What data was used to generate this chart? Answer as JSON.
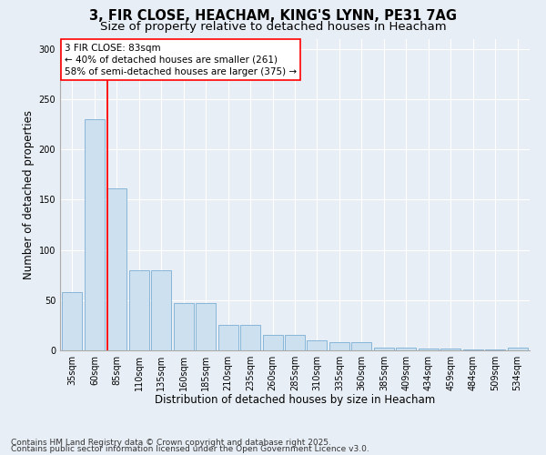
{
  "title1": "3, FIR CLOSE, HEACHAM, KING'S LYNN, PE31 7AG",
  "title2": "Size of property relative to detached houses in Heacham",
  "xlabel": "Distribution of detached houses by size in Heacham",
  "ylabel": "Number of detached properties",
  "categories": [
    "35sqm",
    "60sqm",
    "85sqm",
    "110sqm",
    "135sqm",
    "160sqm",
    "185sqm",
    "210sqm",
    "235sqm",
    "260sqm",
    "285sqm",
    "310sqm",
    "335sqm",
    "360sqm",
    "385sqm",
    "409sqm",
    "434sqm",
    "459sqm",
    "484sqm",
    "509sqm",
    "534sqm"
  ],
  "values": [
    58,
    230,
    161,
    80,
    80,
    47,
    47,
    25,
    25,
    15,
    15,
    10,
    8,
    8,
    3,
    3,
    2,
    2,
    1,
    1,
    3
  ],
  "bar_color": "#cce0f0",
  "bar_edge_color": "#7bafd4",
  "vline_x": 1.575,
  "vline_color": "red",
  "annotation_title": "3 FIR CLOSE: 83sqm",
  "annotation_line1": "← 40% of detached houses are smaller (261)",
  "annotation_line2": "58% of semi-detached houses are larger (375) →",
  "annotation_box_color": "white",
  "annotation_box_edge": "red",
  "ylim": [
    0,
    310
  ],
  "yticks": [
    0,
    50,
    100,
    150,
    200,
    250,
    300
  ],
  "background_color": "#e8eef5",
  "footer1": "Contains HM Land Registry data © Crown copyright and database right 2025.",
  "footer2": "Contains public sector information licensed under the Open Government Licence v3.0.",
  "title_fontsize": 10.5,
  "subtitle_fontsize": 9.5,
  "axis_label_fontsize": 8.5,
  "tick_fontsize": 7,
  "footer_fontsize": 6.5,
  "annotation_fontsize": 7.5
}
